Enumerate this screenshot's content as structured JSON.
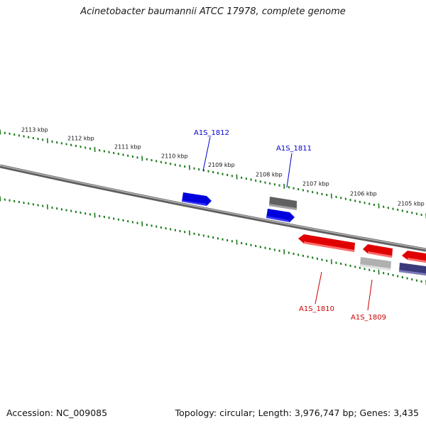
{
  "title": "Acinetobacter baumannii ATCC 17978, complete genome",
  "footer": {
    "accession": "Accession: NC_009085",
    "topology": "Topology: circular; Length: 3,976,747 bp; Genes: 3,435"
  },
  "colors": {
    "forward_gene": "#0000dd",
    "reverse_gene": "#e00000",
    "grey_gene": "#666666",
    "light_grey_gene": "#b0b0b0",
    "purple_gene": "#3a3a7a",
    "tick": "#1a7a1a",
    "backbone": "#7a7a7a",
    "label_forward": "#0000cc",
    "label_reverse": "#cc0000"
  },
  "ticks": [
    {
      "label": "2113 kbp"
    },
    {
      "label": "2112 kbp"
    },
    {
      "label": "2111 kbp"
    },
    {
      "label": "2110 kbp"
    },
    {
      "label": "2109 kbp"
    },
    {
      "label": "2108 kbp"
    },
    {
      "label": "2107 kbp"
    },
    {
      "label": "2106 kbp"
    },
    {
      "label": "2105 kbp"
    }
  ],
  "genes": [
    {
      "id": "A1S_1812",
      "strand": "forward",
      "color": "forward_gene"
    },
    {
      "id": "A1S_1811",
      "strand": "forward",
      "color": "forward_gene"
    },
    {
      "id": "",
      "strand": "forward",
      "color": "grey_gene"
    },
    {
      "id": "A1S_1810",
      "strand": "reverse",
      "color": "reverse_gene"
    },
    {
      "id": "A1S_1809",
      "strand": "reverse",
      "color": "light_grey_gene"
    },
    {
      "id": "",
      "strand": "reverse",
      "color": "reverse_gene"
    },
    {
      "id": "",
      "strand": "reverse",
      "color": "reverse_gene"
    },
    {
      "id": "",
      "strand": "reverse",
      "color": "purple_gene"
    }
  ]
}
